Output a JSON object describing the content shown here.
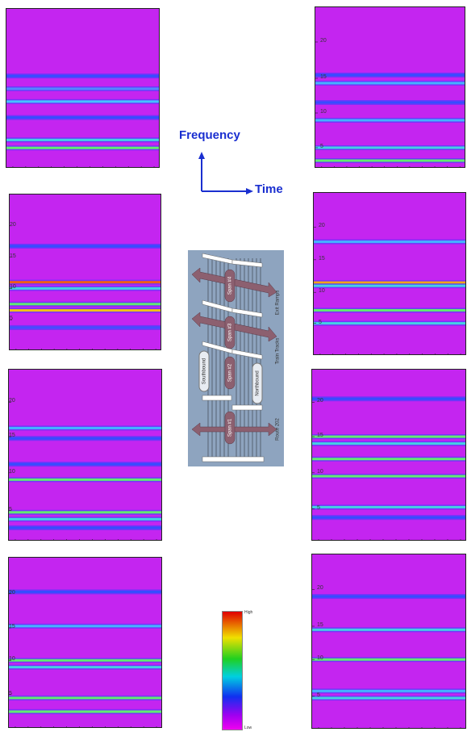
{
  "axis_labels": {
    "frequency": "Frequency",
    "time": "Time"
  },
  "panels": [
    {
      "yticks": []
    },
    {
      "yticks": [
        20,
        15,
        10,
        5
      ]
    },
    {
      "yticks": [
        20,
        15,
        10,
        5
      ]
    },
    {
      "yticks": [
        20,
        15,
        10,
        5
      ]
    },
    {
      "yticks": [
        20,
        15,
        10,
        5
      ]
    },
    {
      "yticks": [
        20,
        15,
        10,
        5
      ]
    },
    {
      "yticks": [
        20,
        15,
        10,
        5
      ]
    },
    {
      "yticks": [
        20,
        15,
        10,
        5
      ]
    }
  ],
  "diagram": {
    "spans": [
      "Span #4",
      "Span #3",
      "Span #2",
      "Span #1"
    ],
    "side_labels": [
      "Exit Ramps",
      "Train Tracks",
      "Route 202"
    ],
    "directions": [
      "Southbound",
      "Northbound"
    ]
  },
  "colorbar": {
    "high": "High",
    "low": "Low"
  }
}
